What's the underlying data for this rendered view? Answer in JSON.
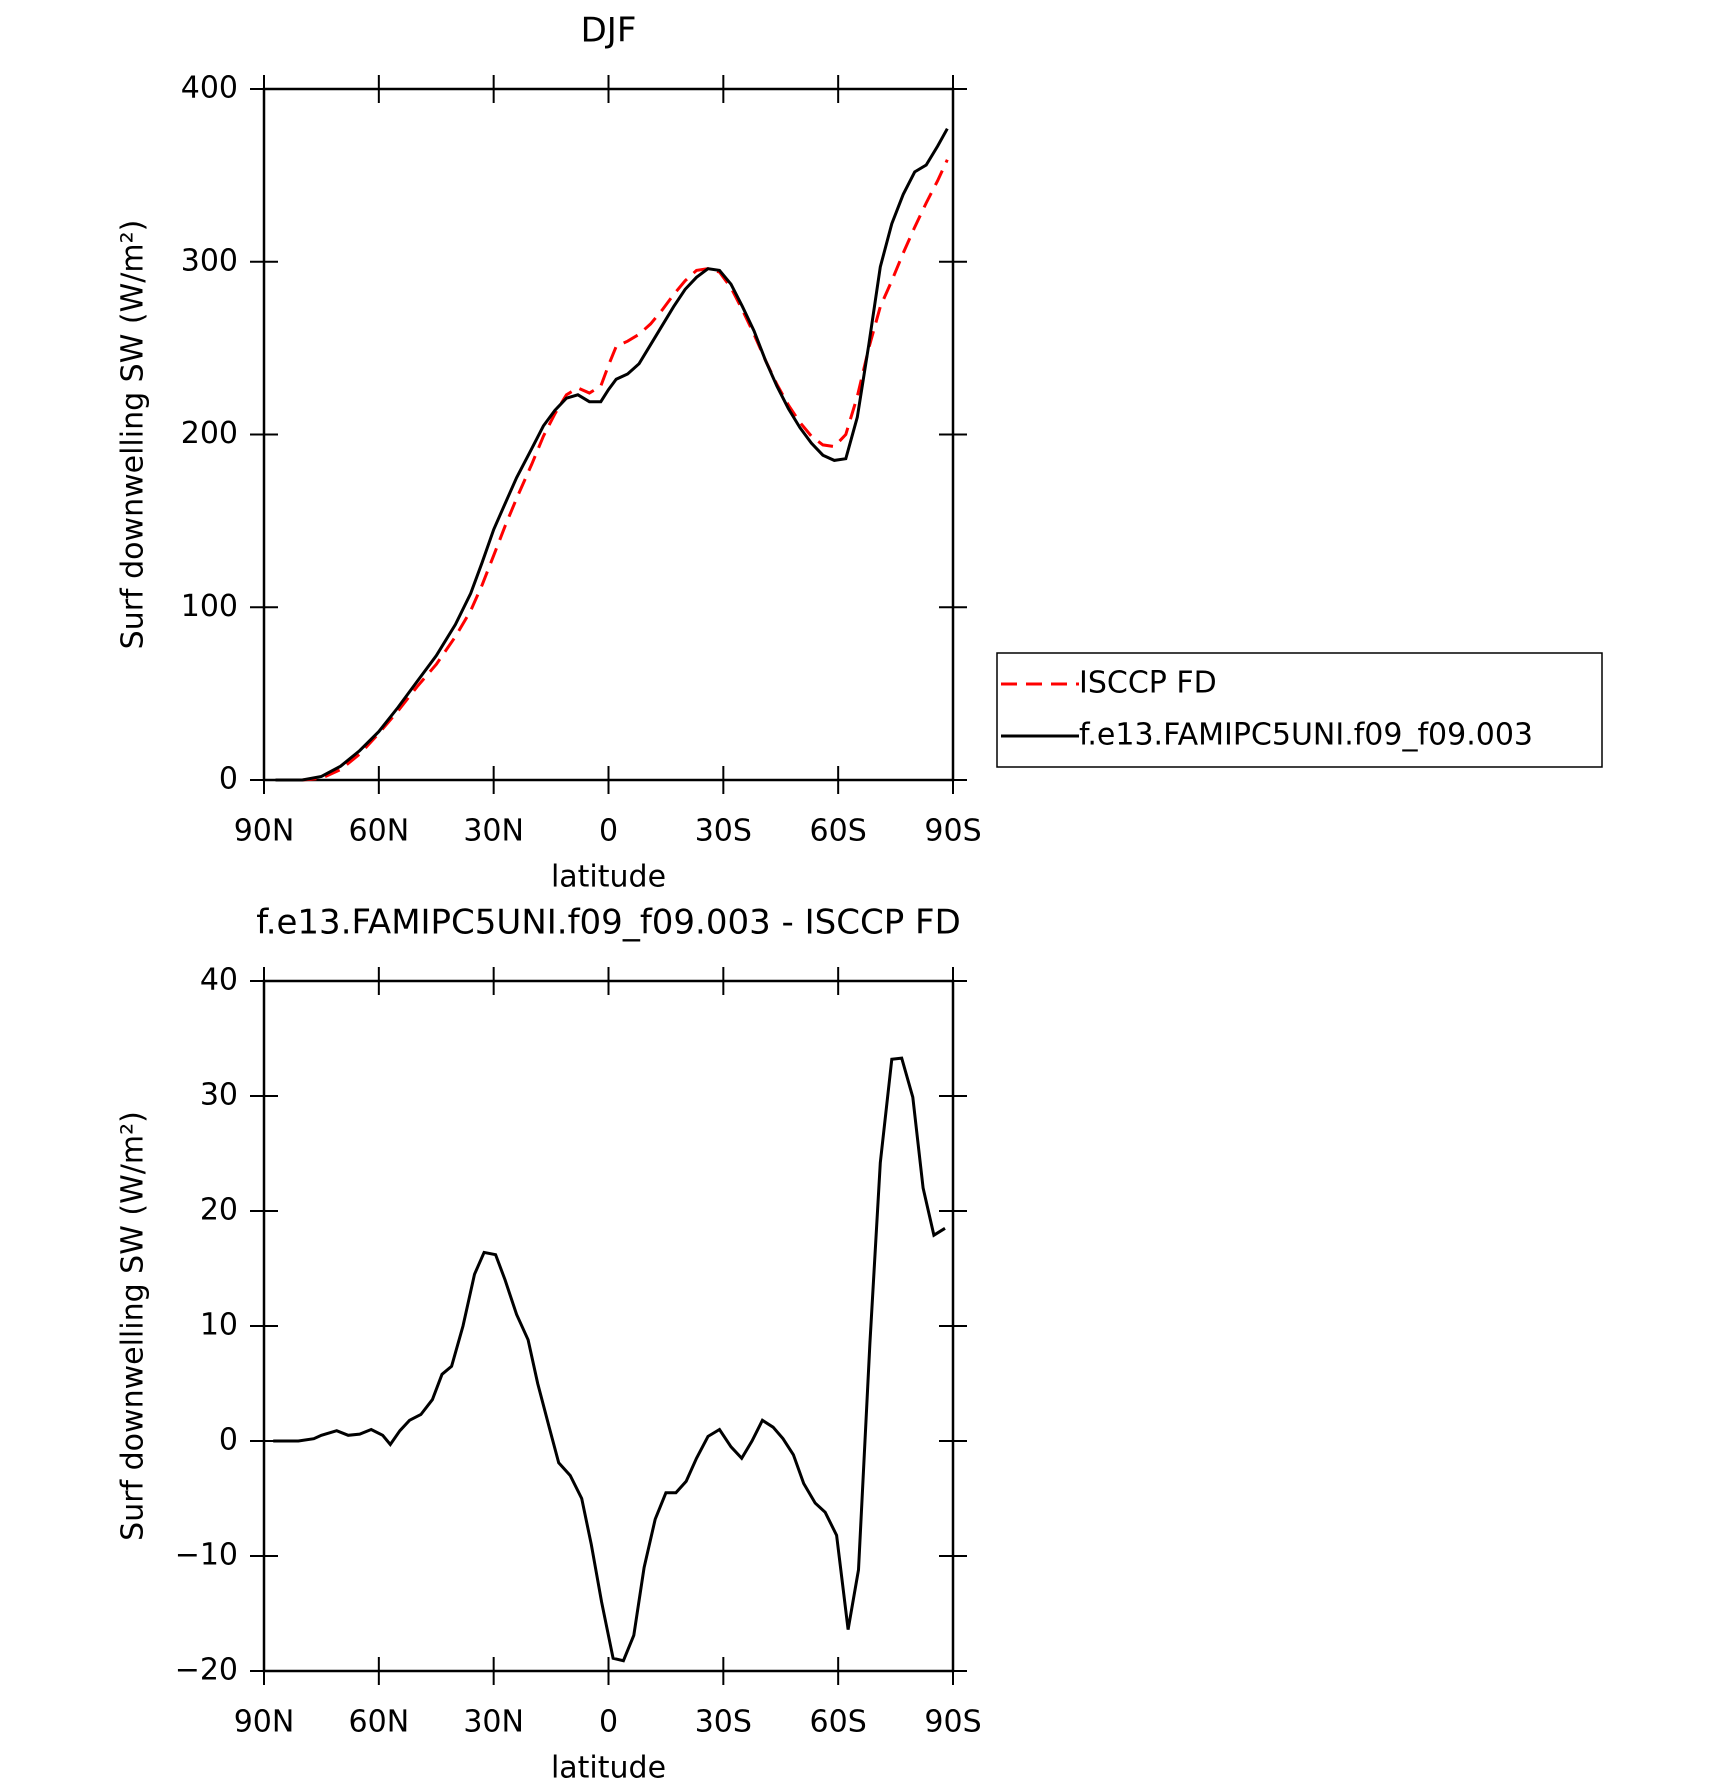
{
  "chart_data": [
    {
      "type": "line",
      "title": "DJF",
      "xlabel": "latitude",
      "ylabel": "Surf downwelling SW (W/m²)",
      "x": [
        87,
        80,
        75,
        70,
        65,
        60,
        55,
        50,
        45,
        40,
        36,
        33,
        30,
        27,
        24,
        20,
        17,
        14,
        11,
        8,
        5,
        2,
        0,
        -2,
        -5,
        -8,
        -11,
        -14,
        -17,
        -20,
        -23,
        -26,
        -29,
        -32,
        -35,
        -38,
        -41,
        -44,
        -47,
        -50,
        -53,
        -56,
        -59,
        -62,
        -65,
        -68,
        -71,
        -74,
        -77,
        -80,
        -83,
        -86,
        -88.5
      ],
      "series": [
        {
          "name": "ISCCP FD",
          "color": "#ff0000",
          "dash": "dashed",
          "values": [
            0,
            0,
            1,
            6,
            15,
            27,
            40,
            54,
            67,
            83,
            98,
            113,
            130,
            147,
            163,
            183,
            199,
            212,
            223,
            227,
            224,
            228,
            240,
            251,
            254,
            258,
            264,
            272,
            281,
            289,
            295,
            296,
            294,
            285,
            272,
            258,
            243,
            229,
            217,
            207,
            199,
            194,
            193,
            200,
            222,
            250,
            274,
            289,
            305,
            320,
            334,
            347,
            359
          ]
        },
        {
          "name": "f.e13.FAMIPC5UNI.f09_f09.003",
          "color": "#000000",
          "dash": "solid",
          "values": [
            0,
            0,
            2,
            8,
            17,
            28,
            42,
            57,
            72,
            90,
            108,
            126,
            145,
            160,
            175,
            192,
            205,
            214,
            221,
            223,
            219,
            219,
            226,
            232,
            235,
            241,
            252,
            263,
            274,
            284,
            291,
            296,
            295,
            287,
            274,
            260,
            243,
            228,
            215,
            204,
            195,
            188,
            185,
            186,
            210,
            252,
            297,
            322,
            339,
            352,
            356,
            367,
            377
          ]
        }
      ],
      "xlim": [
        90,
        -90
      ],
      "xticks": [
        {
          "value": 90,
          "label": "90N"
        },
        {
          "value": 60,
          "label": "60N"
        },
        {
          "value": 30,
          "label": "30N"
        },
        0,
        {
          "value": -30,
          "label": "30S"
        },
        {
          "value": -60,
          "label": "60S"
        },
        {
          "value": -90,
          "label": "90S"
        }
      ],
      "ylim": [
        0,
        400
      ],
      "yticks": [
        0,
        100,
        200,
        300,
        400
      ],
      "legend": "right"
    },
    {
      "type": "line",
      "title": "f.e13.FAMIPC5UNI.f09_f09.003 - ISCCP FD",
      "xlabel": "latitude",
      "ylabel": "Surf downwelling SW (W/m²)",
      "x": [
        87.6,
        81,
        77,
        75,
        71,
        68,
        65,
        62,
        59,
        57,
        54.5,
        52,
        49,
        46,
        43.5,
        41,
        38,
        35,
        32.5,
        29.5,
        27,
        24,
        21,
        18.5,
        15.5,
        13,
        10,
        7,
        4.5,
        1.8,
        -1.2,
        -3.9,
        -6.6,
        -9.3,
        -12.2,
        -15,
        -17.6,
        -20.3,
        -23,
        -26,
        -29,
        -32,
        -34.8,
        -37.5,
        -40.2,
        -43,
        -45.6,
        -48.3,
        -51,
        -54,
        -56.6,
        -59.6,
        -62.6,
        -65.3,
        -68.3,
        -71,
        -74,
        -76.6,
        -79.5,
        -82.2,
        -85,
        -87.9
      ],
      "series": [
        {
          "color": "#000000",
          "dash": "solid",
          "values": [
            0,
            0,
            0.2,
            0.5,
            0.9,
            0.5,
            0.6,
            1.0,
            0.5,
            -0.3,
            0.9,
            1.8,
            2.3,
            3.6,
            5.8,
            6.5,
            10,
            14.5,
            16.4,
            16.2,
            14,
            11,
            8.8,
            5,
            1.2,
            -1.9,
            -3,
            -5,
            -9,
            -14,
            -18.9,
            -19.1,
            -16.9,
            -11,
            -6.8,
            -4.5,
            -4.5,
            -3.5,
            -1.5,
            0.4,
            1.0,
            -0.5,
            -1.5,
            0,
            1.8,
            1.2,
            0.2,
            -1.2,
            -3.7,
            -5.4,
            -6.2,
            -8.2,
            -16.4,
            -11.2,
            8.5,
            24.2,
            33.2,
            33.3,
            29.9,
            22,
            17.9,
            18.5
          ]
        }
      ],
      "xlim": [
        90,
        -90
      ],
      "xticks": [
        {
          "value": 90,
          "label": "90N"
        },
        {
          "value": 60,
          "label": "60N"
        },
        {
          "value": 30,
          "label": "30N"
        },
        0,
        {
          "value": -30,
          "label": "30S"
        },
        {
          "value": -60,
          "label": "60S"
        },
        {
          "value": -90,
          "label": "90S"
        }
      ],
      "ylim": [
        -20,
        40
      ],
      "yticks": [
        {
          "value": -20,
          "label": "−20"
        },
        {
          "value": -10,
          "label": "−10"
        },
        0,
        10,
        20,
        30,
        40
      ]
    }
  ]
}
